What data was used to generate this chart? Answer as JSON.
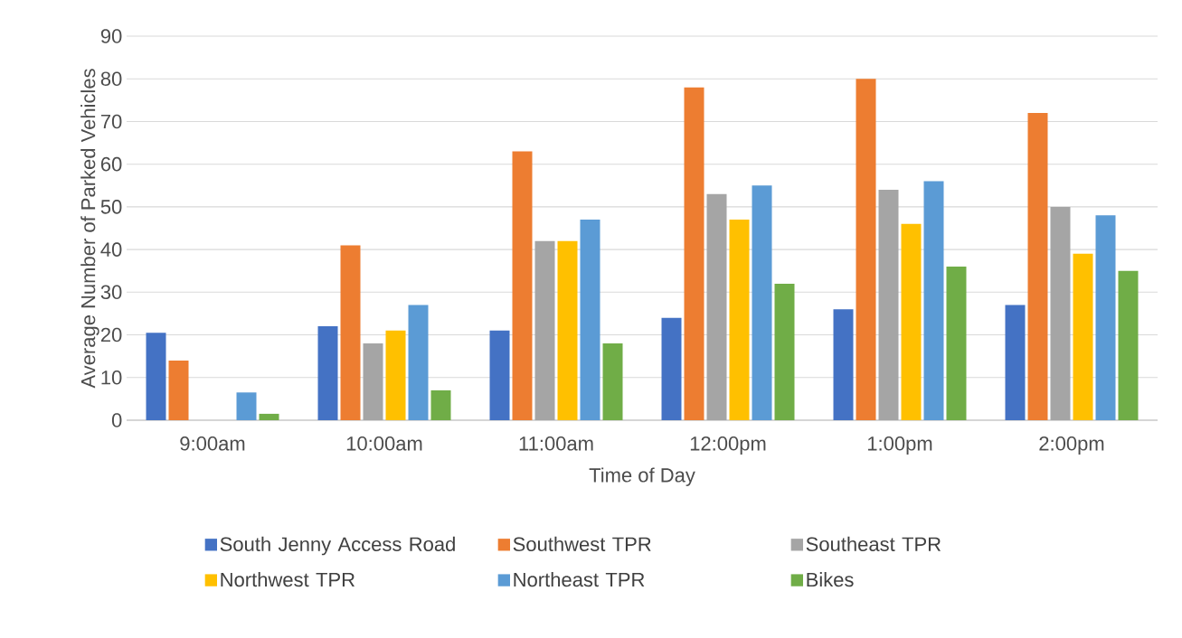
{
  "chart_data": {
    "type": "bar",
    "xlabel": "Time of Day",
    "ylabel": "Average Number of Parked Vehicles",
    "categories": [
      "9:00am",
      "10:00am",
      "11:00am",
      "12:00pm",
      "1:00pm",
      "2:00pm"
    ],
    "series": [
      {
        "name": "South Jenny Access Road",
        "color": "#4472c4",
        "values": [
          20.5,
          22,
          21,
          24,
          26,
          27
        ]
      },
      {
        "name": "Southwest TPR",
        "color": "#ed7d31",
        "values": [
          14,
          41,
          63,
          78,
          80,
          72
        ]
      },
      {
        "name": "Southeast TPR",
        "color": "#a5a5a5",
        "values": [
          null,
          18,
          42,
          53,
          54,
          50
        ]
      },
      {
        "name": "Northwest TPR",
        "color": "#ffc000",
        "values": [
          null,
          21,
          42,
          47,
          46,
          39
        ]
      },
      {
        "name": "Northeast TPR",
        "color": "#5b9bd5",
        "values": [
          6.5,
          27,
          47,
          55,
          56,
          48
        ]
      },
      {
        "name": "Bikes",
        "color": "#70ad47",
        "values": [
          1.5,
          7,
          18,
          32,
          36,
          35
        ]
      }
    ],
    "ylim": [
      0,
      90
    ],
    "yticks": [
      0,
      10,
      20,
      30,
      40,
      50,
      60,
      70,
      80,
      90
    ],
    "grid": "y",
    "legend": "bottom"
  }
}
